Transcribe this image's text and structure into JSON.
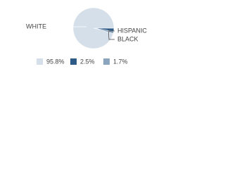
{
  "chart_data": {
    "type": "pie",
    "categories": [
      "WHITE",
      "HISPANIC",
      "BLACK"
    ],
    "values": [
      95.8,
      2.5,
      1.7
    ],
    "value_labels": [
      "95.8%",
      "2.5%",
      "1.7%"
    ],
    "colors": [
      "#d5dfe9",
      "#2e5a87",
      "#8ca5be"
    ]
  }
}
